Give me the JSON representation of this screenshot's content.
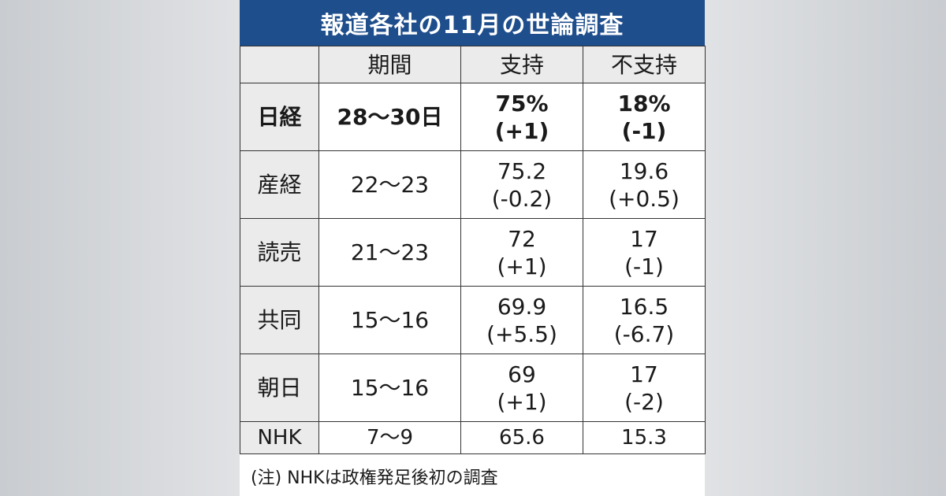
{
  "title": "報道各社の11月の世論調査",
  "header": {
    "blank": "",
    "period": "期間",
    "support": "支持",
    "nonsupport": "不支持"
  },
  "chart_data": {
    "type": "table",
    "title": "報道各社の11月の世論調査",
    "columns": [
      "",
      "期間",
      "支持",
      "不支持"
    ],
    "rows": [
      {
        "outlet": "日経",
        "period": "28～30日",
        "support": "75%",
        "support_change": "(+1)",
        "nonsupport": "18%",
        "nonsupport_change": "(-1)"
      },
      {
        "outlet": "産経",
        "period": "22～23",
        "support": "75.2",
        "support_change": "(-0.2)",
        "nonsupport": "19.6",
        "nonsupport_change": "(+0.5)"
      },
      {
        "outlet": "読売",
        "period": "21～23",
        "support": "72",
        "support_change": "(+1)",
        "nonsupport": "17",
        "nonsupport_change": "(-1)"
      },
      {
        "outlet": "共同",
        "period": "15～16",
        "support": "69.9",
        "support_change": "(+5.5)",
        "nonsupport": "16.5",
        "nonsupport_change": "(-6.7)"
      },
      {
        "outlet": "朝日",
        "period": "15～16",
        "support": "69",
        "support_change": "(+1)",
        "nonsupport": "17",
        "nonsupport_change": "(-2)"
      },
      {
        "outlet": "NHK",
        "period": "7～9",
        "support": "65.6",
        "support_change": "",
        "nonsupport": "15.3",
        "nonsupport_change": ""
      }
    ]
  },
  "note": "(注) NHKは政権発足後初の調査",
  "colors": {
    "title_bg": "#1f4e8c",
    "header_bg": "#ebebeb"
  }
}
